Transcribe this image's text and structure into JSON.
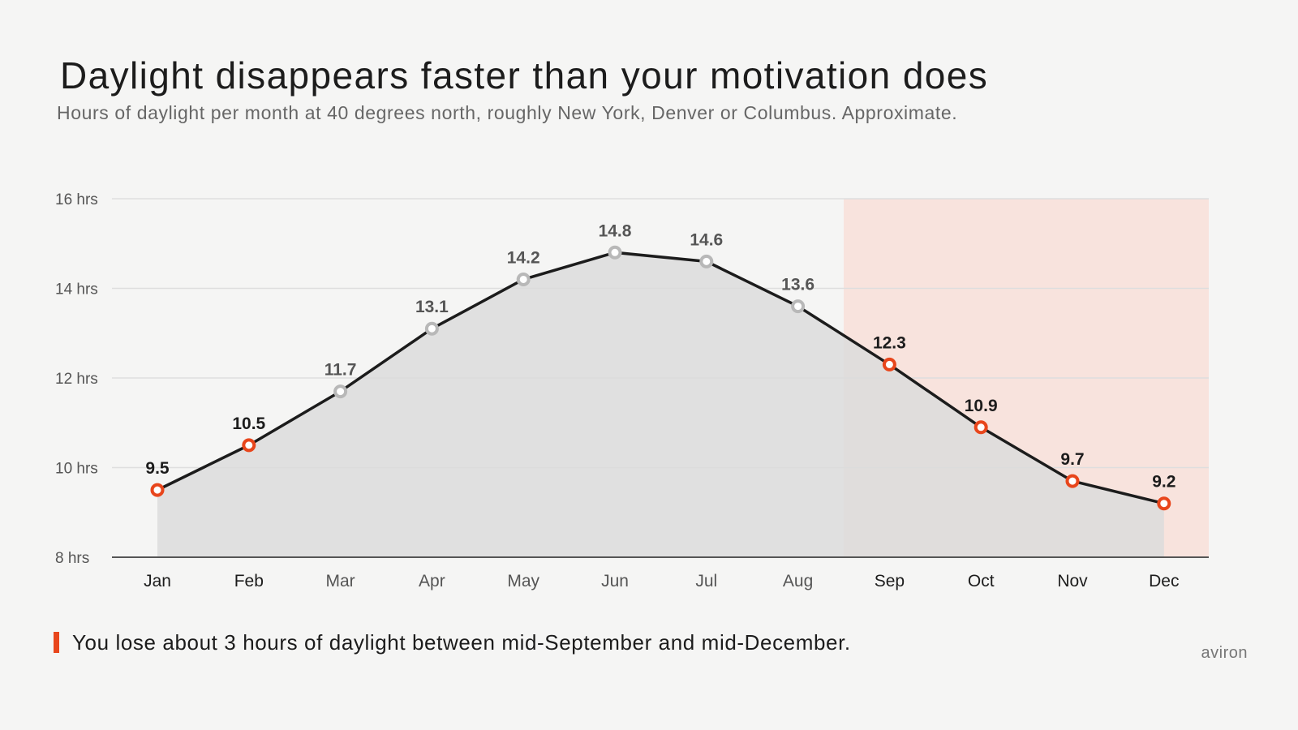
{
  "title": "Daylight disappears faster than your motivation does",
  "subtitle": "Hours of daylight per month at 40 degrees north, roughly New York, Denver or Columbus. Approximate.",
  "footnote": "You lose about 3 hours of daylight between mid-September and mid-December.",
  "brand": "aviron",
  "colors": {
    "background": "#f5f5f4",
    "line": "#1c1c1c",
    "area": "#dcdcdc",
    "highlight_band": "#f8e3dd",
    "accent": "#e8461c",
    "muted_marker": "#b8b8b8",
    "gridline": "#dedede"
  },
  "chart_data": {
    "type": "line",
    "x": [
      "Jan",
      "Feb",
      "Mar",
      "Apr",
      "May",
      "Jun",
      "Jul",
      "Aug",
      "Sep",
      "Oct",
      "Nov",
      "Dec"
    ],
    "series": [
      {
        "values": [
          9.5,
          10.5,
          11.7,
          13.1,
          14.2,
          14.8,
          14.6,
          13.6,
          12.3,
          10.9,
          9.7,
          9.2
        ],
        "highlighted": [
          true,
          true,
          false,
          false,
          false,
          false,
          false,
          false,
          true,
          true,
          true,
          true
        ]
      }
    ],
    "data_labels": [
      "9.5",
      "10.5",
      "11.7",
      "13.1",
      "14.2",
      "14.8",
      "14.6",
      "13.6",
      "12.3",
      "10.9",
      "9.7",
      "9.2"
    ],
    "y_ticks": [
      8,
      10,
      12,
      14,
      16
    ],
    "y_tick_labels": [
      "8 hrs",
      "10 hrs",
      "12 hrs",
      "14 hrs",
      "16 hrs"
    ],
    "ylim": [
      8,
      16
    ],
    "grid": true,
    "shaded_region": {
      "from": "Sep",
      "to": "Dec"
    },
    "xlabel": "",
    "ylabel": ""
  }
}
